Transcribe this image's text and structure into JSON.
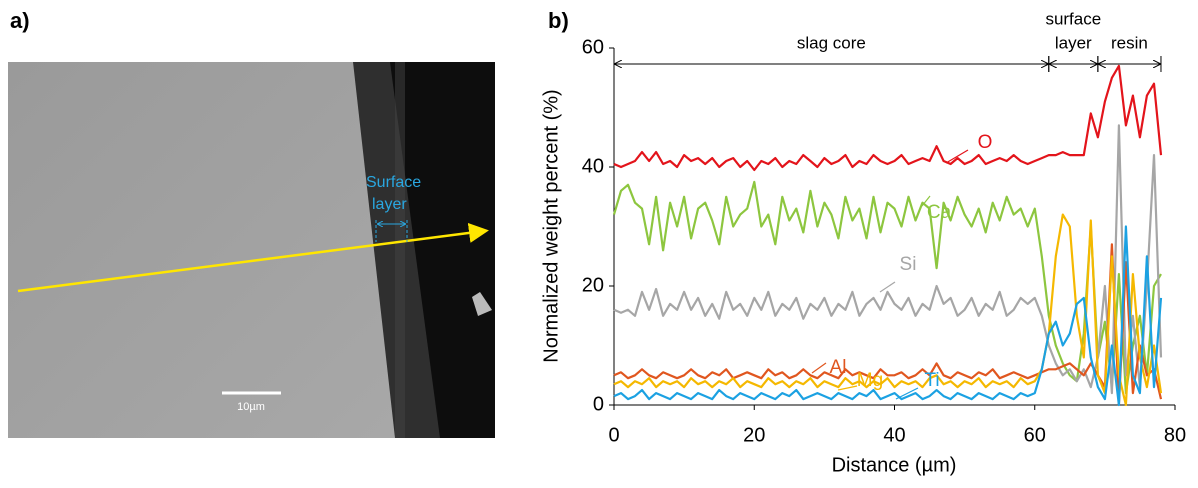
{
  "panel_a": {
    "label": "a)",
    "annotation": [
      "Surface",
      "layer"
    ],
    "scale_bar": "10µm"
  },
  "chart_data": {
    "type": "line",
    "panel_label": "b)",
    "x_label": "Distance (µm)",
    "y_label": "Normalized weight percent (%)",
    "xlim": [
      0,
      80
    ],
    "xticks": [
      0,
      20,
      40,
      60,
      80
    ],
    "ylim": [
      0,
      60
    ],
    "yticks": [
      0,
      20,
      40,
      60
    ],
    "grid": false,
    "regions": [
      {
        "text": [
          "slag core"
        ],
        "x": [
          0,
          62
        ]
      },
      {
        "text": [
          "surface",
          "layer"
        ],
        "x": [
          62,
          69
        ]
      },
      {
        "text": [
          "resin"
        ],
        "x": [
          69,
          78
        ]
      }
    ],
    "x": [
      0,
      1,
      2,
      3,
      4,
      5,
      6,
      7,
      8,
      9,
      10,
      11,
      12,
      13,
      14,
      15,
      16,
      17,
      18,
      19,
      20,
      21,
      22,
      23,
      24,
      25,
      26,
      27,
      28,
      29,
      30,
      31,
      32,
      33,
      34,
      35,
      36,
      37,
      38,
      39,
      40,
      41,
      42,
      43,
      44,
      45,
      46,
      47,
      48,
      49,
      50,
      51,
      52,
      53,
      54,
      55,
      56,
      57,
      58,
      59,
      60,
      61,
      62,
      63,
      64,
      65,
      66,
      67,
      68,
      69,
      70,
      71,
      72,
      73,
      74,
      75,
      76,
      77,
      78
    ],
    "series": [
      {
        "name": "O",
        "color": "#e3141b",
        "values": [
          40.5,
          40,
          40.5,
          41,
          42.5,
          41,
          42.5,
          40.5,
          41,
          40,
          42,
          41,
          41.5,
          40.5,
          41.5,
          40,
          41,
          41.5,
          40,
          41,
          39.5,
          41,
          40.5,
          41.5,
          40,
          41,
          40.5,
          42,
          41,
          40,
          41.5,
          40.5,
          41,
          42,
          40,
          41,
          40.5,
          42,
          41,
          40.5,
          41,
          42,
          40.5,
          41,
          41.5,
          41,
          43.5,
          41,
          40.5,
          41.5,
          40.5,
          41,
          42,
          40.5,
          41,
          41.5,
          41,
          42,
          41,
          40.5,
          41,
          41.5,
          42,
          42,
          42.5,
          42,
          42,
          42,
          49,
          45,
          51,
          55,
          57,
          47,
          52,
          45,
          52,
          54,
          42
        ]
      },
      {
        "name": "Ca",
        "color": "#8dc63f",
        "values": [
          32,
          36,
          37,
          34,
          33,
          27,
          35,
          26,
          34,
          30,
          35,
          28,
          33,
          34,
          31,
          27,
          35,
          30,
          32,
          33,
          37.5,
          30,
          32,
          27,
          35,
          31,
          33,
          29,
          36,
          30,
          34,
          32,
          28,
          35,
          31,
          33,
          28,
          35,
          29,
          34,
          33,
          30,
          35,
          31,
          34,
          33,
          23,
          34,
          31,
          35,
          32,
          30,
          33,
          29,
          34,
          31,
          35,
          32,
          33,
          30,
          33,
          25,
          15,
          10,
          7,
          5,
          4,
          12,
          30,
          8,
          14,
          3,
          22,
          2,
          10,
          15,
          5,
          20,
          22
        ]
      },
      {
        "name": "Si",
        "color": "#a6a6a6",
        "values": [
          16,
          15.5,
          16,
          15,
          19,
          16,
          19.5,
          15,
          17,
          16,
          19,
          16,
          18,
          15,
          17,
          14.5,
          19,
          16,
          17,
          15,
          18,
          16,
          19,
          15,
          17,
          16,
          18,
          14.5,
          17,
          16,
          18,
          15,
          17,
          16,
          19,
          15,
          17,
          18,
          16,
          19,
          17,
          16,
          18,
          15,
          17,
          16,
          20,
          17,
          18,
          15,
          16,
          18,
          15,
          17,
          16,
          19,
          15,
          16,
          18,
          17,
          18,
          15,
          10,
          7,
          5,
          6,
          4,
          6,
          3,
          8,
          20,
          2,
          47,
          5,
          15,
          3,
          20,
          42,
          8
        ]
      },
      {
        "name": "Al",
        "color": "#e0561f",
        "values": [
          5,
          5.5,
          4.5,
          5,
          6,
          5,
          4.5,
          5.5,
          5,
          4.5,
          5,
          6,
          5,
          4.5,
          5.5,
          5,
          6,
          4.5,
          5,
          5.5,
          5,
          4.5,
          6,
          5,
          5.5,
          4.5,
          5,
          6,
          5,
          4.5,
          5.5,
          5,
          4.5,
          6,
          5,
          5.5,
          5,
          4.5,
          6,
          5,
          5,
          5.5,
          4.5,
          5,
          6,
          5,
          7,
          5,
          4.5,
          5.5,
          5,
          4.5,
          5.5,
          5,
          6,
          4.5,
          5,
          5.5,
          5,
          4.5,
          5,
          5.5,
          6,
          6,
          6.5,
          7,
          6,
          5,
          7,
          5,
          3,
          27,
          0,
          24,
          2,
          10,
          5,
          6,
          1
        ]
      },
      {
        "name": "Mg",
        "color": "#f5b800",
        "values": [
          3.5,
          4,
          3,
          4,
          3.5,
          4.5,
          3,
          4,
          3.5,
          4,
          3,
          4.5,
          3.5,
          4,
          3,
          4,
          3.5,
          4.5,
          3,
          4,
          3.5,
          3,
          4.5,
          3.5,
          4,
          3,
          4,
          3.5,
          4.5,
          3,
          4,
          3.5,
          3,
          4.5,
          3.5,
          4,
          3,
          4,
          3.5,
          4.5,
          3,
          4,
          3.5,
          4,
          3,
          4.5,
          5,
          3.5,
          4,
          3,
          4,
          3.5,
          4.5,
          3,
          4,
          3.5,
          4,
          3,
          4.5,
          3.5,
          4,
          6,
          12,
          25,
          32,
          30,
          15,
          8,
          31,
          5,
          2,
          25,
          5,
          0,
          22,
          8,
          3,
          10,
          2
        ]
      },
      {
        "name": "Ti",
        "color": "#1ba1e2",
        "values": [
          1.5,
          2,
          1,
          1.5,
          2.5,
          1,
          2,
          1.5,
          1,
          2,
          1.5,
          1,
          2,
          1.5,
          1,
          2.5,
          1.5,
          1,
          2,
          1.5,
          1,
          2,
          1.5,
          1,
          2,
          1.5,
          2.5,
          1,
          1.5,
          2,
          1.5,
          1,
          2,
          1.5,
          1,
          2,
          1.5,
          2.5,
          1,
          1.5,
          2,
          1,
          1.5,
          2,
          1,
          1.5,
          2.5,
          1.5,
          1,
          2,
          1.5,
          1,
          2,
          1.5,
          1,
          2,
          1.5,
          1,
          2,
          1.5,
          2,
          6,
          12,
          14,
          10,
          12,
          17,
          18,
          8,
          3,
          1,
          10,
          0,
          30,
          5,
          2,
          25,
          3,
          18
        ]
      }
    ]
  }
}
